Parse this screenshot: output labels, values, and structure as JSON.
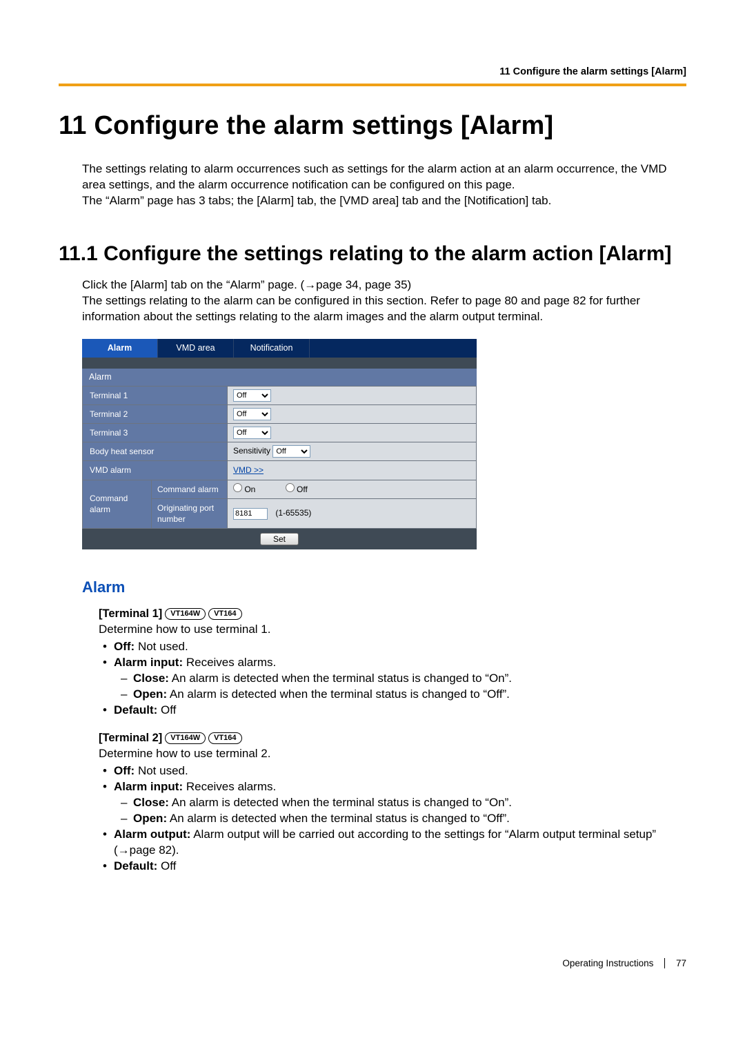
{
  "header": {
    "running": "11 Configure the alarm settings [Alarm]"
  },
  "chapter": {
    "title": "11   Configure the alarm settings [Alarm]",
    "intro1": "The settings relating to alarm occurrences such as settings for the alarm action at an alarm occurrence, the VMD area settings, and the alarm occurrence notification can be configured on this page.",
    "intro2": "The “Alarm” page has 3 tabs; the [Alarm] tab, the [VMD area] tab and the [Notification] tab."
  },
  "section": {
    "title": "11.1  Configure the settings relating to the alarm action [Alarm]",
    "p1": "Click the [Alarm] tab on the “Alarm” page. (→page 34, page 35)",
    "p2": "The settings relating to the alarm can be configured in this section. Refer to page 80 and page 82 for further information about the settings relating to the alarm images and the alarm output terminal."
  },
  "ui": {
    "tabs": {
      "alarm": "Alarm",
      "vmd": "VMD area",
      "notif": "Notification"
    },
    "section_label": "Alarm",
    "rows": {
      "t1": "Terminal 1",
      "t2": "Terminal 2",
      "t3": "Terminal 3",
      "body": "Body heat sensor",
      "body_prefix": "Sensitivity",
      "vmd": "VMD alarm",
      "vmd_link": "VMD >>",
      "cmd": "Command alarm",
      "cmd_sub1": "Command alarm",
      "cmd_sub2_a": "Originating port",
      "cmd_sub2_b": "number",
      "on": "On",
      "off": "Off",
      "sel_off": "Off",
      "port_val": "8181",
      "port_range": "(1-65535)"
    },
    "set": "Set"
  },
  "alarm_section": {
    "heading": "Alarm",
    "terminals": [
      {
        "title": "[Terminal 1]",
        "badges": [
          "VT164W",
          "VT164"
        ],
        "determine": "Determine how to use terminal 1.",
        "items": [
          {
            "label": "Off:",
            "text": " Not used."
          },
          {
            "label": "Alarm input:",
            "text": " Receives alarms.",
            "sub": [
              {
                "label": "Close:",
                "text": " An alarm is detected when the terminal status is changed to “On”."
              },
              {
                "label": "Open:",
                "text": " An alarm is detected when the terminal status is changed to “Off”."
              }
            ]
          },
          {
            "label": "Default:",
            "text": " Off"
          }
        ]
      },
      {
        "title": "[Terminal 2]",
        "badges": [
          "VT164W",
          "VT164"
        ],
        "determine": "Determine how to use terminal 2.",
        "items": [
          {
            "label": "Off:",
            "text": " Not used."
          },
          {
            "label": "Alarm input:",
            "text": " Receives alarms.",
            "sub": [
              {
                "label": "Close:",
                "text": " An alarm is detected when the terminal status is changed to “On”."
              },
              {
                "label": "Open:",
                "text": " An alarm is detected when the terminal status is changed to “Off”."
              }
            ]
          },
          {
            "label": "Alarm output:",
            "text": " Alarm output will be carried out according to the settings for “Alarm output terminal setup” (→page 82)."
          },
          {
            "label": "Default:",
            "text": " Off"
          }
        ]
      }
    ]
  },
  "footer": {
    "label": "Operating Instructions",
    "page": "77"
  }
}
